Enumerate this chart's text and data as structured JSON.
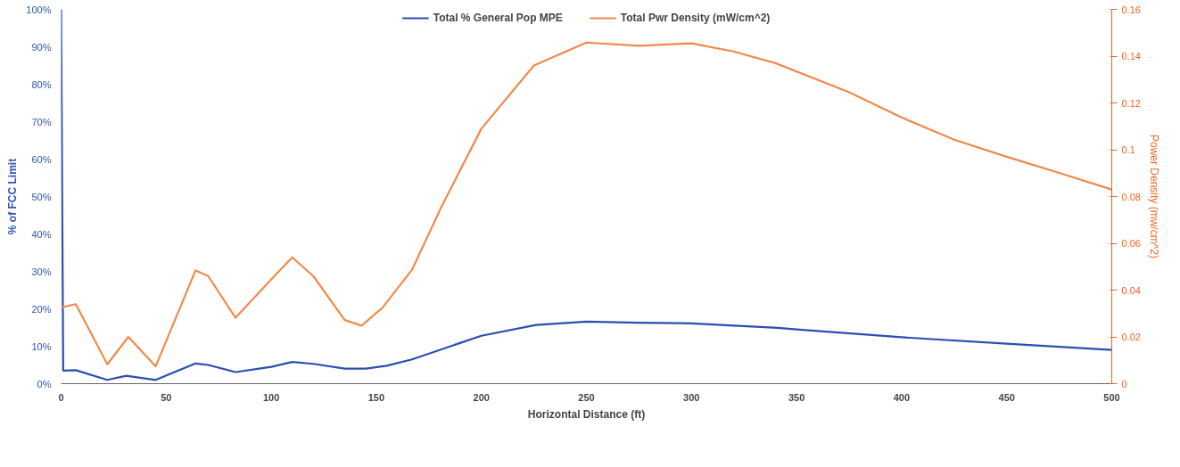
{
  "chart_data": {
    "type": "line",
    "xlabel": "Horizontal Distance (ft)",
    "ylabel": "% of FCC Limit",
    "y2label": "Power Density (mw/cm^2)",
    "xlim": [
      0,
      500
    ],
    "xticks": [
      0,
      50,
      100,
      150,
      200,
      250,
      300,
      350,
      400,
      450,
      500
    ],
    "ylim": [
      0,
      100
    ],
    "yticks": [
      {
        "value": 0,
        "label": "0%"
      },
      {
        "value": 10,
        "label": "10%"
      },
      {
        "value": 20,
        "label": "20%"
      },
      {
        "value": 30,
        "label": "30%"
      },
      {
        "value": 40,
        "label": "40%"
      },
      {
        "value": 50,
        "label": "50%"
      },
      {
        "value": 60,
        "label": "60%"
      },
      {
        "value": 70,
        "label": "70%"
      },
      {
        "value": 80,
        "label": "80%"
      },
      {
        "value": 90,
        "label": "90%"
      },
      {
        "value": 100,
        "label": "100%"
      }
    ],
    "y2lim": [
      0,
      0.16
    ],
    "y2ticks": [
      0,
      0.02,
      0.04,
      0.06,
      0.08,
      0.1,
      0.12,
      0.14,
      0.16
    ],
    "grid": false,
    "legend": "top",
    "marker": "none",
    "line_style": "solid",
    "series": [
      {
        "name": "Total % General Pop MPE",
        "color": "#2a4fb0",
        "x": [
          0,
          1,
          7,
          22,
          31,
          45,
          64,
          70,
          83,
          100,
          110,
          120,
          135,
          145,
          155,
          167,
          200,
          226,
          250,
          275,
          300,
          341,
          350,
          400,
          450,
          500
        ],
        "values": [
          100,
          3.5,
          3.6,
          1.0,
          2.1,
          1.0,
          5.4,
          5.0,
          3.1,
          4.5,
          5.8,
          5.3,
          4.0,
          4.0,
          4.8,
          6.5,
          12.8,
          15.7,
          16.6,
          16.3,
          16.1,
          14.9,
          14.5,
          12.4,
          10.7,
          9.0
        ]
      },
      {
        "name": "Total Pwr Density (mW/cm^2)",
        "color": "#f08a4b",
        "axis": "y2",
        "x": [
          0,
          7,
          22,
          32,
          45,
          64,
          70,
          83,
          100,
          110,
          120,
          135,
          143,
          153,
          167,
          181,
          200,
          225,
          250,
          275,
          300,
          320,
          340,
          375,
          400,
          425,
          450,
          475,
          500
        ],
        "values": [
          0.0325,
          0.034,
          0.0083,
          0.02,
          0.0074,
          0.0484,
          0.046,
          0.0282,
          0.0446,
          0.054,
          0.046,
          0.0272,
          0.0248,
          0.0325,
          0.0487,
          0.0756,
          0.109,
          0.136,
          0.1458,
          0.1444,
          0.1455,
          0.142,
          0.137,
          0.1246,
          0.1138,
          0.1043,
          0.097,
          0.0901,
          0.083
        ]
      }
    ]
  }
}
